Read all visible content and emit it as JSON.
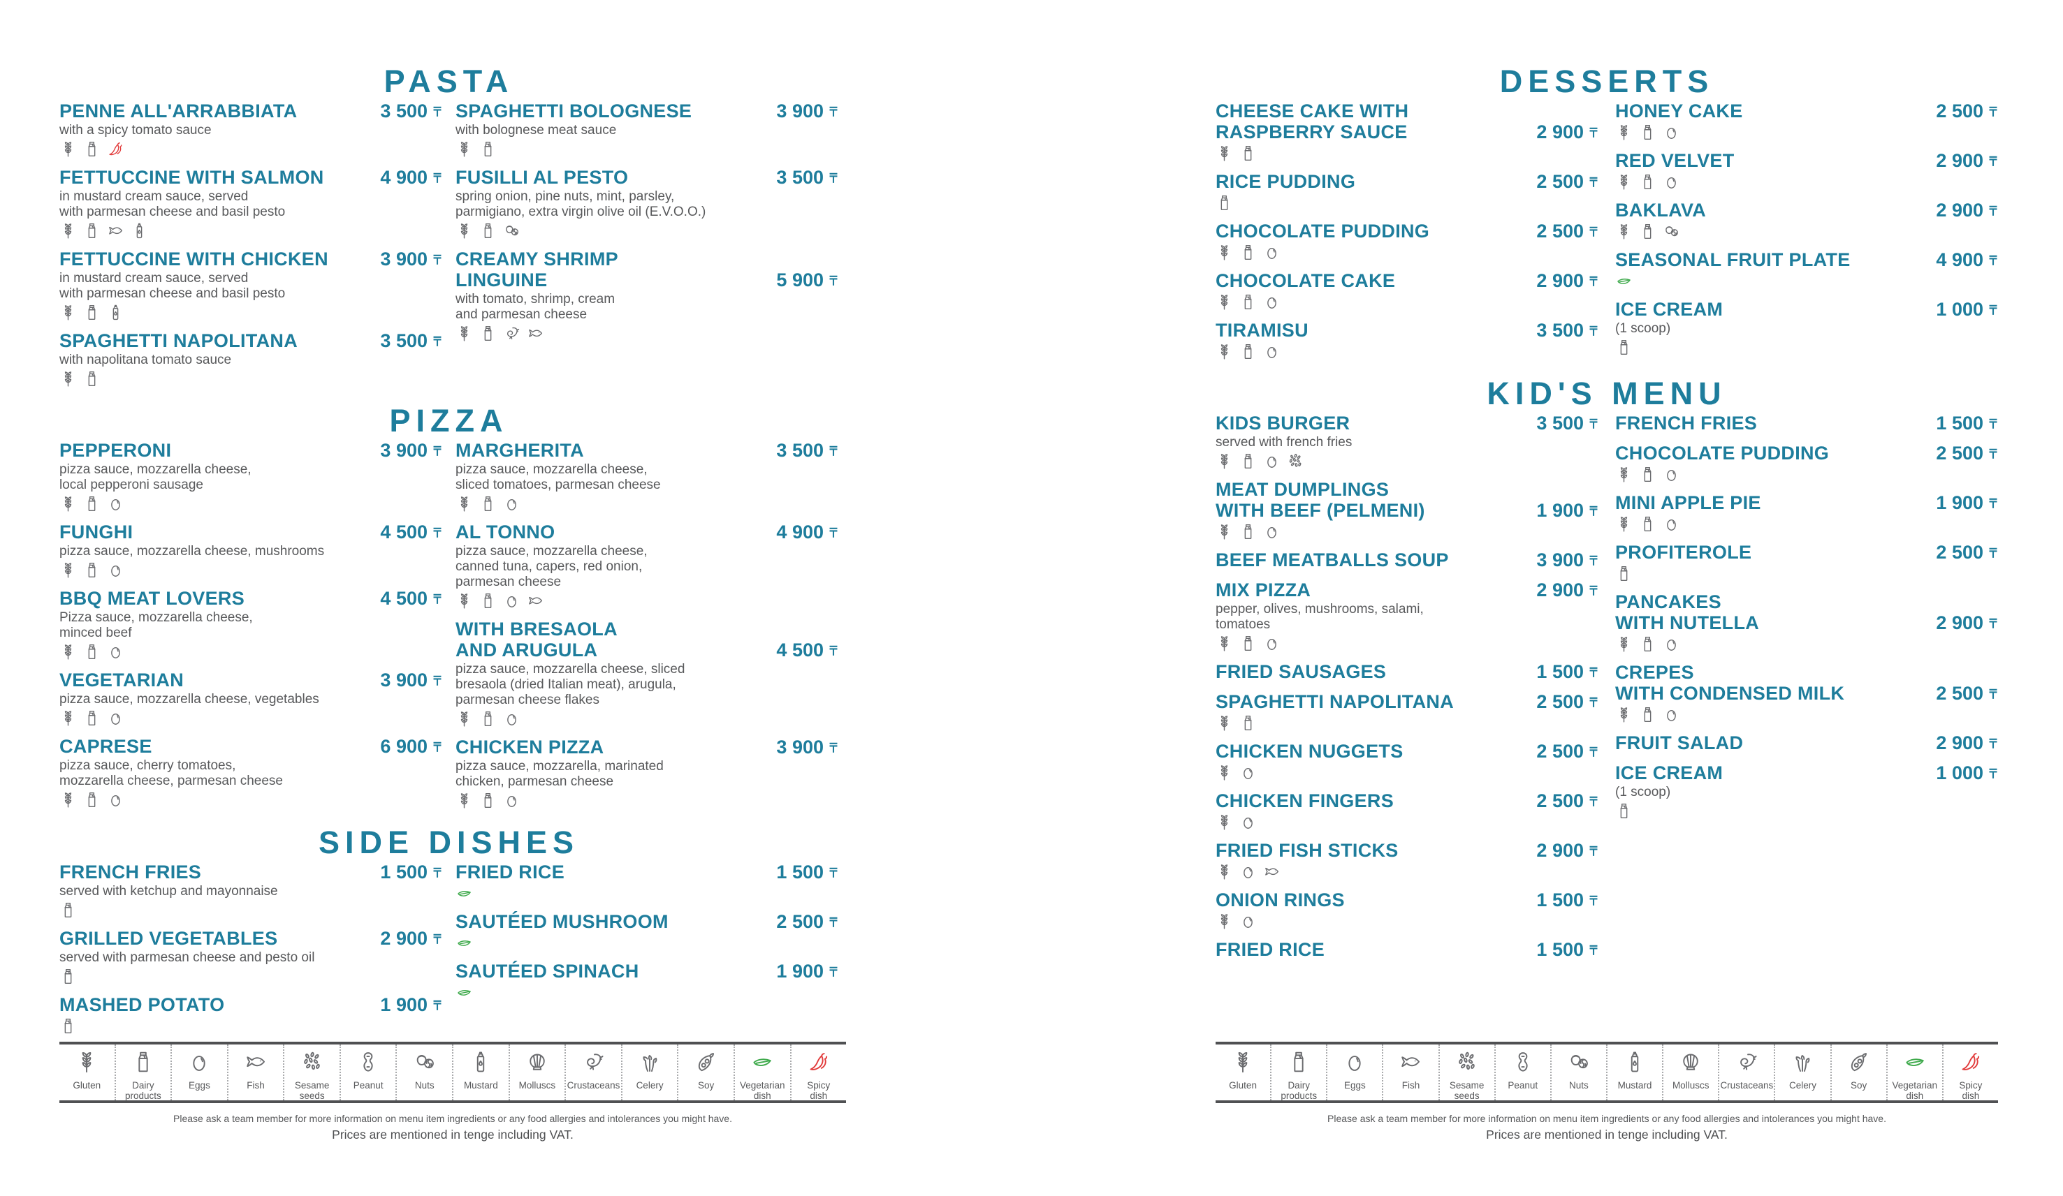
{
  "currency": "₸",
  "colors": {
    "accent": "#1e7d9c",
    "body_text": "#58595b",
    "icon_gray": "#6a6b6e",
    "vegetarian_green": "#3faa4c",
    "spicy_red": "#e23c3c",
    "background": "#ffffff"
  },
  "sections": {
    "pasta": {
      "title": "PASTA",
      "columns": [
        [
          {
            "name": "PENNE ALL'ARRABBIATA",
            "desc": "with a spicy tomato sauce",
            "price": "3 500",
            "icons": [
              "gluten",
              "dairy",
              "spicy"
            ]
          },
          {
            "name": "FETTUCCINE WITH SALMON",
            "desc": "in mustard cream sauce, served\nwith parmesan cheese and basil pesto",
            "price": "4 900",
            "icons": [
              "gluten",
              "dairy",
              "fish",
              "mustard"
            ]
          },
          {
            "name": "FETTUCCINE WITH CHICKEN",
            "desc": "in mustard cream sauce, served\nwith parmesan cheese and basil pesto",
            "price": "3 900",
            "icons": [
              "gluten",
              "dairy",
              "mustard"
            ]
          },
          {
            "name": "SPAGHETTI NAPOLITANA",
            "desc": "with napolitana tomato sauce",
            "price": "3 500",
            "icons": [
              "gluten",
              "dairy"
            ]
          }
        ],
        [
          {
            "name": "SPAGHETTI BOLOGNESE",
            "desc": "with bolognese meat sauce",
            "price": "3 900",
            "icons": [
              "gluten",
              "dairy"
            ]
          },
          {
            "name": "FUSILLI AL PESTO",
            "desc": "spring onion, pine nuts, mint, parsley,\nparmigiano, extra virgin olive oil (E.V.O.O.)",
            "price": "3 500",
            "icons": [
              "gluten",
              "dairy",
              "nuts"
            ]
          },
          {
            "name": "CREAMY SHRIMP\nLINGUINE",
            "desc": "with tomato, shrimp, cream\nand parmesan cheese",
            "price": "5 900",
            "icons": [
              "gluten",
              "dairy",
              "crustaceans",
              "fish"
            ]
          }
        ]
      ]
    },
    "pizza": {
      "title": "PIZZA",
      "columns": [
        [
          {
            "name": "PEPPERONI",
            "desc": "pizza sauce, mozzarella cheese,\nlocal pepperoni sausage",
            "price": "3 900",
            "icons": [
              "gluten",
              "dairy",
              "eggs"
            ]
          },
          {
            "name": "FUNGHI",
            "desc": "pizza sauce, mozzarella cheese, mushrooms",
            "price": "4 500",
            "icons": [
              "gluten",
              "dairy",
              "eggs"
            ]
          },
          {
            "name": "BBQ MEAT LOVERS",
            "desc": "Pizza sauce, mozzarella cheese,\nminced beef",
            "price": "4 500",
            "icons": [
              "gluten",
              "dairy",
              "eggs"
            ]
          },
          {
            "name": "VEGETARIAN",
            "desc": "pizza sauce, mozzarella cheese, vegetables",
            "price": "3 900",
            "icons": [
              "gluten",
              "dairy",
              "eggs"
            ]
          },
          {
            "name": "CAPRESE",
            "desc": "pizza sauce, cherry tomatoes,\nmozzarella cheese, parmesan cheese",
            "price": "6 900",
            "icons": [
              "gluten",
              "dairy",
              "eggs"
            ]
          }
        ],
        [
          {
            "name": "MARGHERITA",
            "desc": "pizza sauce, mozzarella cheese,\nsliced tomatoes, parmesan cheese",
            "price": "3 500",
            "icons": [
              "gluten",
              "dairy",
              "eggs"
            ]
          },
          {
            "name": "AL TONNO",
            "desc": "pizza sauce, mozzarella cheese,\ncanned tuna, capers, red onion,\nparmesan cheese",
            "price": "4 900",
            "icons": [
              "gluten",
              "dairy",
              "eggs",
              "fish"
            ]
          },
          {
            "name": "WITH BRESAOLA\nAND ARUGULA",
            "desc": "pizza sauce, mozzarella cheese, sliced\nbresaola (dried Italian meat), arugula,\nparmesan cheese flakes",
            "price": "4 500",
            "icons": [
              "gluten",
              "dairy",
              "eggs"
            ]
          },
          {
            "name": "CHICKEN PIZZA",
            "desc": "pizza sauce, mozzarella, marinated\nchicken, parmesan cheese",
            "price": "3 900",
            "icons": [
              "gluten",
              "dairy",
              "eggs"
            ]
          }
        ]
      ]
    },
    "sides": {
      "title": "SIDE DISHES",
      "columns": [
        [
          {
            "name": "FRENCH FRIES",
            "desc": "served with ketchup and mayonnaise",
            "price": "1 500",
            "icons": [
              "dairy"
            ]
          },
          {
            "name": "GRILLED VEGETABLES",
            "desc": "served with parmesan cheese and pesto oil",
            "price": "2 900",
            "icons": [
              "dairy"
            ]
          },
          {
            "name": "MASHED POTATO",
            "price": "1 900",
            "icons": [
              "dairy"
            ]
          }
        ],
        [
          {
            "name": "FRIED RICE",
            "price": "1 500",
            "icons": [
              "vegetarian"
            ]
          },
          {
            "name": "SAUTÉED MUSHROOM",
            "price": "2 500",
            "icons": [
              "vegetarian"
            ]
          },
          {
            "name": "SAUTÉED SPINACH",
            "price": "1 900",
            "icons": [
              "vegetarian"
            ]
          }
        ]
      ]
    },
    "desserts": {
      "title": "DESSERTS",
      "columns": [
        [
          {
            "name": "CHEESE CAKE WITH\nRASPBERRY SAUCE",
            "price": "2 900",
            "icons": [
              "gluten",
              "dairy"
            ]
          },
          {
            "name": "RICE PUDDING",
            "price": "2 500",
            "icons": [
              "dairy"
            ]
          },
          {
            "name": "CHOCOLATE PUDDING",
            "price": "2 500",
            "icons": [
              "gluten",
              "dairy",
              "eggs"
            ]
          },
          {
            "name": "CHOCOLATE CAKE",
            "price": "2 900",
            "icons": [
              "gluten",
              "dairy",
              "eggs"
            ]
          },
          {
            "name": "TIRAMISU",
            "price": "3 500",
            "icons": [
              "gluten",
              "dairy",
              "eggs"
            ]
          }
        ],
        [
          {
            "name": "HONEY CAKE",
            "price": "2 500",
            "icons": [
              "gluten",
              "dairy",
              "eggs"
            ]
          },
          {
            "name": "RED VELVET",
            "price": "2 900",
            "icons": [
              "gluten",
              "dairy",
              "eggs"
            ]
          },
          {
            "name": "BAKLAVA",
            "price": "2 900",
            "icons": [
              "gluten",
              "dairy",
              "nuts"
            ]
          },
          {
            "name": "SEASONAL FRUIT PLATE",
            "price": "4 900",
            "icons": [
              "vegetarian"
            ]
          },
          {
            "name": "ICE CREAM",
            "desc": "(1 scoop)",
            "price": "1 000",
            "icons": [
              "dairy"
            ]
          }
        ]
      ]
    },
    "kids": {
      "title": "KID'S MENU",
      "columns": [
        [
          {
            "name": "KIDS BURGER",
            "desc": "served with french fries",
            "price": "3 500",
            "icons": [
              "gluten",
              "dairy",
              "eggs",
              "sesame"
            ]
          },
          {
            "name": "MEAT DUMPLINGS\nWITH BEEF (PELMENI)",
            "price": "1 900",
            "icons": [
              "gluten",
              "dairy",
              "eggs"
            ]
          },
          {
            "name": "BEEF MEATBALLS SOUP",
            "price": "3 900",
            "icons": []
          },
          {
            "name": "MIX PIZZA",
            "desc": "pepper, olives, mushrooms, salami,\ntomatoes",
            "price": "2 900",
            "icons": [
              "gluten",
              "dairy",
              "eggs"
            ]
          },
          {
            "name": "FRIED SAUSAGES",
            "price": "1 500",
            "icons": []
          },
          {
            "name": "SPAGHETTI NAPOLITANA",
            "price": "2 500",
            "icons": [
              "gluten",
              "dairy"
            ]
          },
          {
            "name": "CHICKEN NUGGETS",
            "price": "2 500",
            "icons": [
              "gluten",
              "eggs"
            ]
          },
          {
            "name": "CHICKEN FINGERS",
            "price": "2 500",
            "icons": [
              "gluten",
              "eggs"
            ]
          },
          {
            "name": "FRIED FISH STICKS",
            "price": "2 900",
            "icons": [
              "gluten",
              "eggs",
              "fish"
            ]
          },
          {
            "name": "ONION RINGS",
            "price": "1 500",
            "icons": [
              "gluten",
              "eggs"
            ]
          },
          {
            "name": "FRIED RICE",
            "price": "1 500",
            "icons": []
          }
        ],
        [
          {
            "name": "FRENCH FRIES",
            "price": "1 500",
            "icons": []
          },
          {
            "name": "CHOCOLATE PUDDING",
            "price": "2 500",
            "icons": [
              "gluten",
              "dairy",
              "eggs"
            ]
          },
          {
            "name": "MINI APPLE PIE",
            "price": "1 900",
            "icons": [
              "gluten",
              "dairy",
              "eggs"
            ]
          },
          {
            "name": "PROFITEROLE",
            "price": "2 500",
            "icons": [
              "dairy"
            ]
          },
          {
            "name": "PANCAKES\nWITH NUTELLA",
            "price": "2 900",
            "icons": [
              "gluten",
              "dairy",
              "eggs"
            ]
          },
          {
            "name": "CREPES\nWITH CONDENSED MILK",
            "price": "2 500",
            "icons": [
              "gluten",
              "dairy",
              "eggs"
            ]
          },
          {
            "name": "FRUIT SALAD",
            "price": "2 900",
            "icons": []
          },
          {
            "name": "ICE CREAM",
            "desc": "(1 scoop)",
            "price": "1 000",
            "icons": [
              "dairy"
            ]
          }
        ]
      ]
    }
  },
  "legend": [
    {
      "icon": "gluten",
      "label": "Gluten"
    },
    {
      "icon": "dairy",
      "label": "Dairy\nproducts"
    },
    {
      "icon": "eggs",
      "label": "Eggs"
    },
    {
      "icon": "fish",
      "label": "Fish"
    },
    {
      "icon": "sesame",
      "label": "Sesame\nseeds"
    },
    {
      "icon": "peanut",
      "label": "Peanut"
    },
    {
      "icon": "nuts",
      "label": "Nuts"
    },
    {
      "icon": "mustard",
      "label": "Mustard"
    },
    {
      "icon": "molluscs",
      "label": "Molluscs"
    },
    {
      "icon": "crustaceans",
      "label": "Crustaceans"
    },
    {
      "icon": "celery",
      "label": "Celery"
    },
    {
      "icon": "soy",
      "label": "Soy"
    },
    {
      "icon": "vegetarian",
      "label": "Vegetarian\ndish"
    },
    {
      "icon": "spicy",
      "label": "Spicy\ndish"
    }
  ],
  "footer": {
    "line1": "Please ask a team member for more information on menu item ingredients or any food allergies and intolerances you might have.",
    "line2": "Prices are mentioned in tenge including VAT."
  }
}
